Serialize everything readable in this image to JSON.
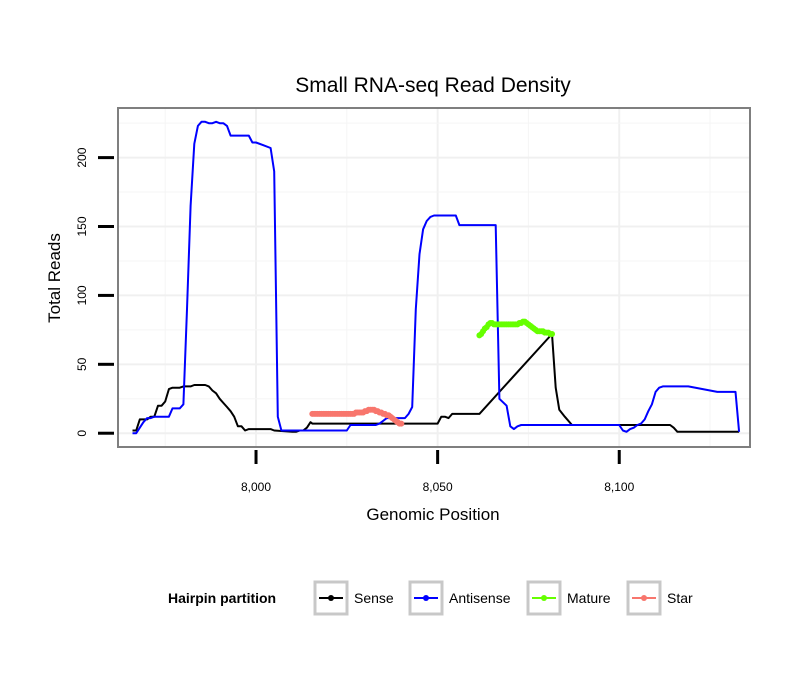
{
  "chart_data": {
    "type": "line",
    "title": "Small RNA-seq Read Density",
    "xlabel": "Genomic Position",
    "ylabel": "Total Reads",
    "xlim": [
      7962,
      8136
    ],
    "ylim": [
      -10,
      236
    ],
    "xticks": [
      8000,
      8050,
      8100
    ],
    "xtick_labels": [
      "8,000",
      "8,050",
      "8,100"
    ],
    "yticks": [
      0,
      50,
      100,
      150,
      200
    ],
    "ytick_labels": [
      "0",
      "50",
      "100",
      "150",
      "200"
    ],
    "grid": true,
    "legend": {
      "title": "Hairpin partition",
      "position": "bottom",
      "entries": [
        "Sense",
        "Antisense",
        "Mature",
        "Star"
      ]
    },
    "series": [
      {
        "name": "Sense",
        "color": "#000000",
        "markers": false,
        "x": [
          7966,
          7967,
          7968,
          7970,
          7971,
          7972,
          7973,
          7974,
          7975,
          7976,
          7977,
          7978,
          7979,
          7980,
          7981,
          7982,
          7983,
          7984,
          7985,
          7986,
          7987,
          7988,
          7989,
          7990,
          7991,
          7992,
          7993,
          7994,
          7995,
          7996,
          7997,
          7998,
          7999,
          8000,
          8004,
          8005,
          8010,
          8011,
          8012,
          8013,
          8014,
          8015,
          8015.5,
          8040,
          8041,
          8042,
          8043,
          8044,
          8045,
          8046,
          8047,
          8050,
          8051,
          8052,
          8053,
          8054,
          8060,
          8061.5,
          8081.5,
          8082.5,
          8083.5,
          8085,
          8087,
          8110,
          8112,
          8113,
          8114,
          8115,
          8116,
          8133
        ],
        "y": [
          2,
          2,
          10,
          10,
          12,
          12,
          20,
          20,
          23,
          32,
          33,
          33,
          33,
          34,
          34,
          34,
          35,
          35,
          35,
          35,
          34,
          31,
          29,
          25,
          22,
          19,
          16,
          12,
          5,
          5,
          2,
          3,
          3,
          3,
          3,
          2,
          1,
          1,
          2,
          2,
          4,
          8,
          7,
          7,
          7,
          7,
          7,
          7,
          7,
          7,
          7,
          7,
          12,
          12,
          11,
          14,
          14,
          14,
          72,
          33,
          17,
          12,
          6,
          6,
          6,
          6,
          6,
          4,
          1,
          1
        ]
      },
      {
        "name": "Antisense",
        "color": "#0000ff",
        "markers": false,
        "x": [
          7966,
          7967,
          7968,
          7969,
          7970,
          7971,
          7972,
          7976,
          7977,
          7977.5,
          7978,
          7979,
          7980,
          7981,
          7982,
          7983,
          7984,
          7985,
          7986,
          7987,
          7988,
          7989,
          7990,
          7991,
          7992,
          7993,
          7998,
          7999,
          8000,
          8002,
          8004,
          8005,
          8006,
          8007,
          8020,
          8021,
          8025,
          8026,
          8030,
          8031,
          8032,
          8033,
          8034,
          8036,
          8038,
          8039,
          8040,
          8041,
          8042,
          8043,
          8044,
          8045,
          8046,
          8047,
          8048,
          8049,
          8050,
          8051,
          8052,
          8055,
          8056,
          8062,
          8063,
          8064,
          8065,
          8066,
          8067,
          8069,
          8070,
          8071,
          8072,
          8073,
          8080,
          8085,
          8090,
          8100,
          8101,
          8102,
          8103,
          8104,
          8105,
          8106,
          8107,
          8108,
          8109,
          8110,
          8111,
          8112,
          8118,
          8119,
          8127,
          8132,
          8133
        ],
        "y": [
          0,
          0,
          4,
          8,
          11,
          11,
          12,
          12,
          18,
          18,
          18,
          18,
          21,
          90,
          165,
          210,
          223,
          226,
          226,
          225,
          225,
          226,
          225,
          225,
          223,
          216,
          216,
          211,
          211,
          209,
          207,
          190,
          12,
          2,
          2,
          2,
          2,
          6,
          6,
          6,
          6,
          6,
          7,
          11,
          11,
          11,
          11,
          11,
          14,
          19,
          90,
          130,
          148,
          154,
          157,
          158,
          158,
          158,
          158,
          158,
          151,
          151,
          151,
          151,
          151,
          151,
          25,
          20,
          5,
          3,
          5,
          6,
          6,
          6,
          6,
          6,
          2,
          1,
          3,
          4,
          6,
          7,
          10,
          16,
          21,
          30,
          33,
          34,
          34,
          34,
          30,
          30,
          1
        ]
      },
      {
        "name": "Mature",
        "color": "#66ff00",
        "markers": true,
        "x": [
          8061.5,
          8062,
          8062.5,
          8063,
          8063.5,
          8064,
          8064.5,
          8065,
          8065.5,
          8066,
          8066.5,
          8067,
          8067.5,
          8068,
          8068.5,
          8069,
          8069.5,
          8070,
          8070.5,
          8071,
          8071.5,
          8072,
          8072.5,
          8073,
          8073.5,
          8074,
          8074.5,
          8075,
          8075.5,
          8076,
          8076.5,
          8077,
          8077.5,
          8078,
          8078.5,
          8079,
          8079.5,
          8080,
          8080.5,
          8081,
          8081.5
        ],
        "y": [
          71,
          72,
          74,
          76,
          77,
          79,
          80,
          80,
          79,
          79,
          79,
          79,
          79,
          79,
          79,
          79,
          79,
          79,
          79,
          79,
          79,
          79,
          80,
          80,
          81,
          81,
          80,
          79,
          78,
          77,
          76,
          75,
          74,
          74,
          74,
          74,
          73,
          73,
          73,
          72,
          72
        ]
      },
      {
        "name": "Star",
        "color": "#f8766d",
        "markers": true,
        "x": [
          8015.5,
          8016,
          8016.5,
          8017,
          8017.5,
          8018,
          8018.5,
          8019,
          8019.5,
          8020,
          8020.5,
          8021,
          8021.5,
          8022,
          8022.5,
          8023,
          8023.5,
          8024,
          8024.5,
          8025,
          8025.5,
          8026,
          8026.5,
          8027,
          8027.5,
          8028,
          8028.5,
          8029,
          8029.5,
          8030,
          8030.5,
          8031,
          8031.5,
          8032,
          8032.5,
          8033,
          8033.5,
          8034,
          8034.5,
          8035,
          8035.5,
          8036,
          8036.5,
          8037,
          8037.5,
          8038,
          8038.5,
          8039,
          8039.5,
          8040
        ],
        "y": [
          14,
          14,
          14,
          14,
          14,
          14,
          14,
          14,
          14,
          14,
          14,
          14,
          14,
          14,
          14,
          14,
          14,
          14,
          14,
          14,
          14,
          14,
          14,
          14,
          15,
          15,
          15,
          15,
          15,
          16,
          16,
          17,
          17,
          17,
          17,
          16,
          16,
          15,
          15,
          14,
          14,
          13,
          13,
          12,
          11,
          10,
          9,
          8,
          7,
          7
        ]
      }
    ]
  }
}
